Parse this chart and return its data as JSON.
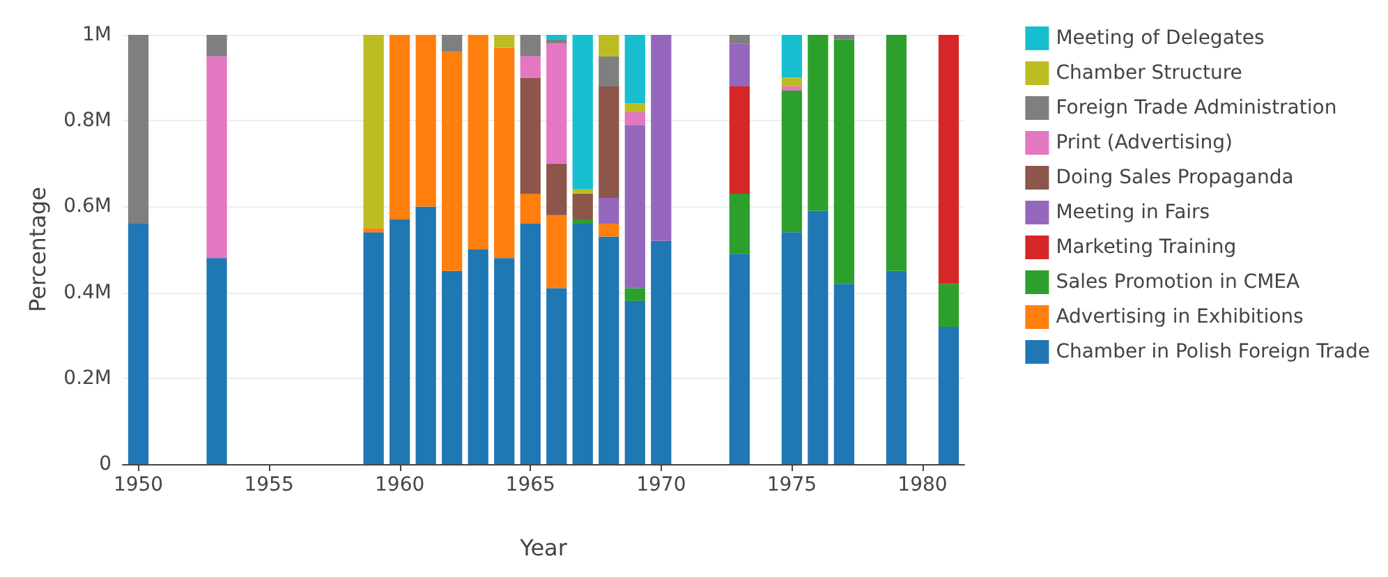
{
  "chart_data": {
    "type": "bar",
    "stacked": true,
    "xlabel": "Year",
    "ylabel": "Percentage",
    "x": [
      1950,
      1953,
      1959,
      1960,
      1961,
      1962,
      1963,
      1964,
      1965,
      1966,
      1967,
      1968,
      1969,
      1970,
      1973,
      1975,
      1976,
      1977,
      1979,
      1981
    ],
    "series": [
      {
        "name": "Chamber in Polish Foreign Trade",
        "color": "#1f77b4",
        "values": [
          0.56,
          0.48,
          0.54,
          0.57,
          0.6,
          0.45,
          0.5,
          0.48,
          0.56,
          0.41,
          0.56,
          0.53,
          0.38,
          0.52,
          0.49,
          0.54,
          0.59,
          0.42,
          0.45,
          0.32
        ]
      },
      {
        "name": "Advertising in Exhibitions",
        "color": "#ff7f0e",
        "values": [
          null,
          null,
          0.01,
          0.43,
          0.4,
          0.51,
          0.5,
          0.49,
          0.07,
          0.17,
          null,
          0.03,
          null,
          null,
          null,
          null,
          null,
          null,
          null,
          null
        ]
      },
      {
        "name": "Sales Promotion in CMEA",
        "color": "#2ca02c",
        "values": [
          null,
          null,
          null,
          null,
          null,
          null,
          null,
          null,
          null,
          null,
          0.01,
          null,
          0.03,
          null,
          0.14,
          0.33,
          0.41,
          0.57,
          0.55,
          0.1
        ]
      },
      {
        "name": "Marketing Training",
        "color": "#d62728",
        "values": [
          null,
          null,
          null,
          null,
          null,
          null,
          null,
          null,
          null,
          null,
          null,
          null,
          null,
          null,
          0.25,
          null,
          null,
          null,
          null,
          0.58
        ]
      },
      {
        "name": "Meeting in Fairs",
        "color": "#9467bd",
        "values": [
          null,
          null,
          null,
          null,
          null,
          null,
          null,
          null,
          null,
          null,
          null,
          0.06,
          0.38,
          0.48,
          0.1,
          null,
          null,
          null,
          null,
          null
        ]
      },
      {
        "name": "Doing Sales Propaganda",
        "color": "#8c564b",
        "values": [
          null,
          null,
          null,
          null,
          null,
          null,
          null,
          null,
          0.27,
          0.12,
          0.06,
          0.26,
          null,
          null,
          null,
          null,
          null,
          null,
          null,
          null
        ]
      },
      {
        "name": "Print (Advertising)",
        "color": "#e377c2",
        "values": [
          null,
          0.47,
          null,
          null,
          null,
          null,
          null,
          null,
          0.05,
          0.28,
          null,
          null,
          0.03,
          null,
          null,
          0.01,
          null,
          null,
          null,
          null
        ]
      },
      {
        "name": "Foreign Trade Administration",
        "color": "#7f7f7f",
        "values": [
          0.44,
          0.05,
          null,
          null,
          null,
          0.04,
          null,
          null,
          0.05,
          0.01,
          null,
          0.07,
          null,
          null,
          0.02,
          null,
          null,
          0.01,
          null,
          null
        ]
      },
      {
        "name": "Chamber Structure",
        "color": "#bcbd22",
        "values": [
          null,
          null,
          0.45,
          null,
          null,
          null,
          null,
          0.03,
          null,
          null,
          0.01,
          0.05,
          0.02,
          null,
          null,
          0.02,
          null,
          null,
          null,
          null
        ]
      },
      {
        "name": "Meeting of Delegates",
        "color": "#17becf",
        "values": [
          null,
          null,
          null,
          null,
          null,
          null,
          null,
          null,
          null,
          0.01,
          0.36,
          null,
          0.16,
          null,
          null,
          0.1,
          null,
          null,
          null,
          null
        ]
      }
    ],
    "xlim": [
      1949.4,
      1981.6
    ],
    "xticks": [
      1950,
      1955,
      1960,
      1965,
      1970,
      1975,
      1980
    ],
    "ylim": [
      0,
      1
    ],
    "yticks": [
      0,
      {
        "value": 0.2,
        "label": "0.2M"
      },
      {
        "value": 0.4,
        "label": "0.4M"
      },
      {
        "value": 0.6,
        "label": "0.6M"
      },
      {
        "value": 0.8,
        "label": "0.8M"
      },
      {
        "value": 1,
        "label": "1M"
      }
    ],
    "grid": "y",
    "legend": "right"
  }
}
